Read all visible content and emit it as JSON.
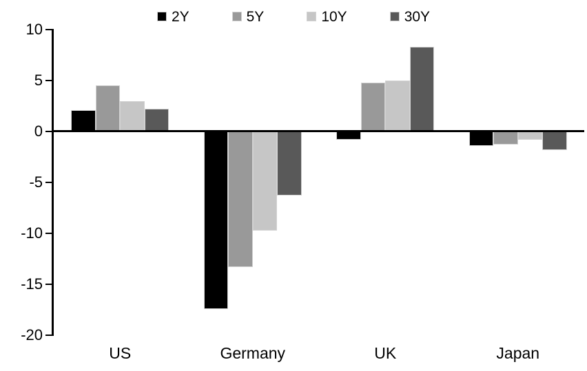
{
  "chart_data": {
    "type": "bar",
    "categories": [
      "US",
      "Germany",
      "UK",
      "Japan"
    ],
    "series": [
      {
        "name": "2Y",
        "color": "#000000",
        "values": [
          2.1,
          -17.4,
          -0.8,
          -1.4
        ]
      },
      {
        "name": "5Y",
        "color": "#999999",
        "values": [
          4.5,
          -13.3,
          4.8,
          -1.3
        ]
      },
      {
        "name": "10Y",
        "color": "#c6c6c6",
        "values": [
          3.0,
          -9.7,
          5.0,
          -0.8
        ]
      },
      {
        "name": "30Y",
        "color": "#595959",
        "values": [
          2.2,
          -6.3,
          8.3,
          -1.8
        ]
      }
    ],
    "ylim": [
      -20,
      10
    ],
    "yticks": [
      10,
      5,
      0,
      -5,
      -10,
      -15,
      -20
    ],
    "grid": false,
    "legend_position": "top"
  },
  "style": {
    "background": "#ffffff",
    "axis_color": "#000000",
    "bar_border": "#d2d2d2"
  }
}
